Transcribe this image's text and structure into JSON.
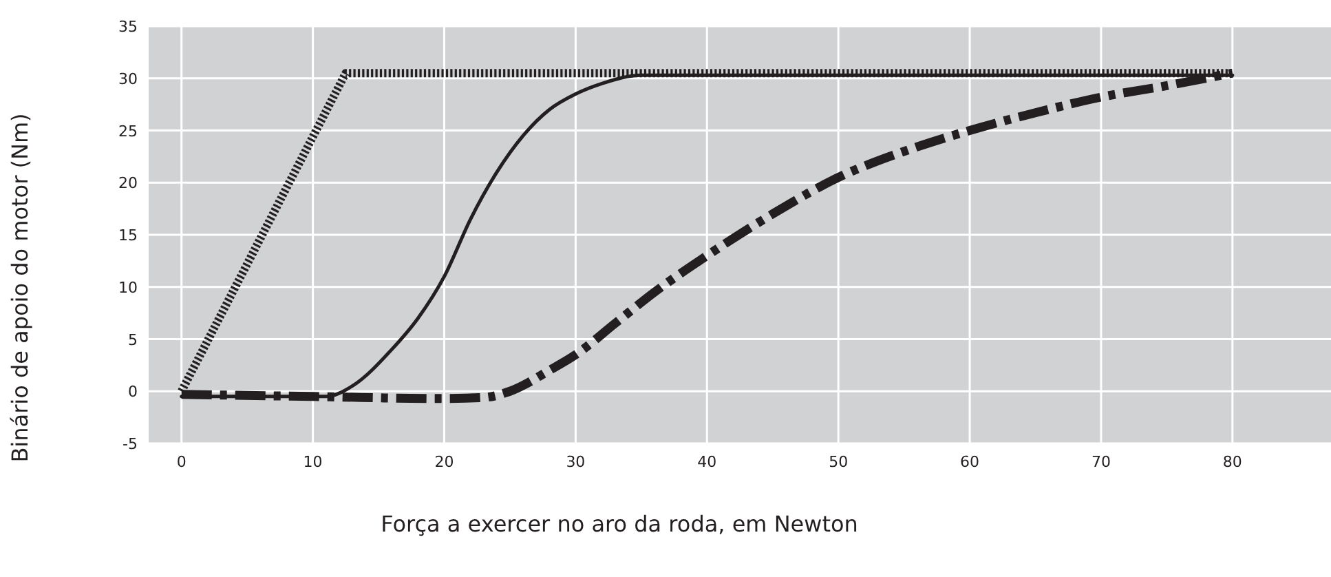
{
  "chart_data": {
    "type": "line",
    "xlabel": "Força a exercer no aro da roda, em Newton",
    "ylabel": "Binário de apoio do motor (Nm)",
    "xlim": [
      -2.5,
      87.5
    ],
    "ylim": [
      -5,
      35
    ],
    "xticks": [
      0,
      10,
      20,
      30,
      40,
      50,
      60,
      70,
      80
    ],
    "yticks": [
      -5,
      0,
      5,
      10,
      15,
      20,
      25,
      30,
      35
    ],
    "grid": true,
    "marker": "none",
    "series": [
      {
        "color": "#231f20",
        "line_style": "dotted",
        "x": [
          0,
          12.5,
          80
        ],
        "values": [
          0,
          30.5,
          30.5
        ]
      },
      {
        "color": "#231f20",
        "line_style": "solid",
        "x": [
          0,
          11,
          13,
          16,
          18,
          20,
          22,
          24,
          26,
          28,
          30,
          32,
          35,
          80
        ],
        "values": [
          -0.5,
          -0.5,
          0.5,
          4,
          7,
          11,
          16.5,
          21,
          24.5,
          27,
          28.5,
          29.5,
          30.3,
          30.3
        ]
      },
      {
        "color": "#231f20",
        "line_style": "dashdot",
        "x": [
          0,
          10,
          20,
          23,
          25,
          28,
          30,
          33,
          36,
          40,
          45,
          50,
          55,
          60,
          65,
          70,
          75,
          80
        ],
        "values": [
          -0.3,
          -0.5,
          -0.7,
          -0.6,
          0,
          2,
          3.5,
          6.5,
          9.5,
          13,
          17,
          20.5,
          23,
          25,
          26.7,
          28.2,
          29.3,
          30.5
        ]
      }
    ]
  }
}
